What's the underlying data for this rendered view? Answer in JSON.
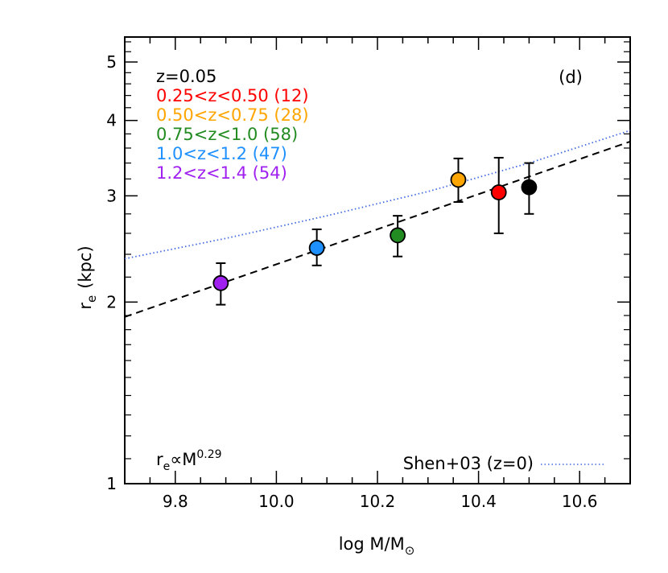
{
  "chart_data": {
    "type": "scatter",
    "panel_label": "(d)",
    "xlabel": "log M/M",
    "xlabel_sub": "⊙",
    "ylabel": "r",
    "ylabel_sub": "e",
    "ylabel_unit": "(kpc)",
    "xlim": [
      9.7,
      10.7
    ],
    "ylim": [
      1,
      5.5
    ],
    "yscale": "log",
    "x_ticks": [
      {
        "value": 9.8,
        "label": "9.8"
      },
      {
        "value": 10.0,
        "label": "10.0"
      },
      {
        "value": 10.2,
        "label": "10.2"
      },
      {
        "value": 10.4,
        "label": "10.4"
      },
      {
        "value": 10.6,
        "label": "10.6"
      }
    ],
    "y_ticks": [
      {
        "value": 1,
        "label": "1"
      },
      {
        "value": 2,
        "label": "2"
      },
      {
        "value": 3,
        "label": "3"
      },
      {
        "value": 4,
        "label": "4"
      },
      {
        "value": 5,
        "label": "5"
      }
    ],
    "series": [
      {
        "name": "z=0.05",
        "color": "#000000",
        "x": 10.5,
        "y": 3.1,
        "y_low": 2.8,
        "y_high": 3.4
      },
      {
        "name": "0.25<z<0.50 (12)",
        "color": "#ff0000",
        "x": 10.44,
        "y": 3.04,
        "y_low": 2.6,
        "y_high": 3.47
      },
      {
        "name": "0.50<z<0.75 (28)",
        "color": "#ffa500",
        "x": 10.36,
        "y": 3.19,
        "y_low": 2.93,
        "y_high": 3.46
      },
      {
        "name": "0.75<z<1.0 (58)",
        "color": "#228b22",
        "x": 10.24,
        "y": 2.58,
        "y_low": 2.38,
        "y_high": 2.78
      },
      {
        "name": "1.0<z<1.2 (47)",
        "color": "#1e90ff",
        "x": 10.08,
        "y": 2.46,
        "y_low": 2.3,
        "y_high": 2.64
      },
      {
        "name": "1.2<z<1.4 (54)",
        "color": "#a020f0",
        "x": 9.89,
        "y": 2.15,
        "y_low": 1.98,
        "y_high": 2.32
      }
    ],
    "fit_line": {
      "label": "r",
      "label_sub": "e",
      "label_mid": "∝M",
      "label_sup": "0.29",
      "style": "dashed",
      "color": "#000000",
      "points": [
        {
          "x": 9.7,
          "y": 1.89
        },
        {
          "x": 10.7,
          "y": 3.69
        }
      ]
    },
    "reference_curve": {
      "name": "Shen+03 (z=0)",
      "style": "dotted",
      "color": "#4169e1",
      "points": [
        {
          "x": 9.7,
          "y": 2.36
        },
        {
          "x": 9.9,
          "y": 2.55
        },
        {
          "x": 10.1,
          "y": 2.78
        },
        {
          "x": 10.3,
          "y": 3.05
        },
        {
          "x": 10.5,
          "y": 3.4
        },
        {
          "x": 10.7,
          "y": 3.85
        }
      ]
    },
    "legend_placement": "top-left",
    "grid": false
  }
}
